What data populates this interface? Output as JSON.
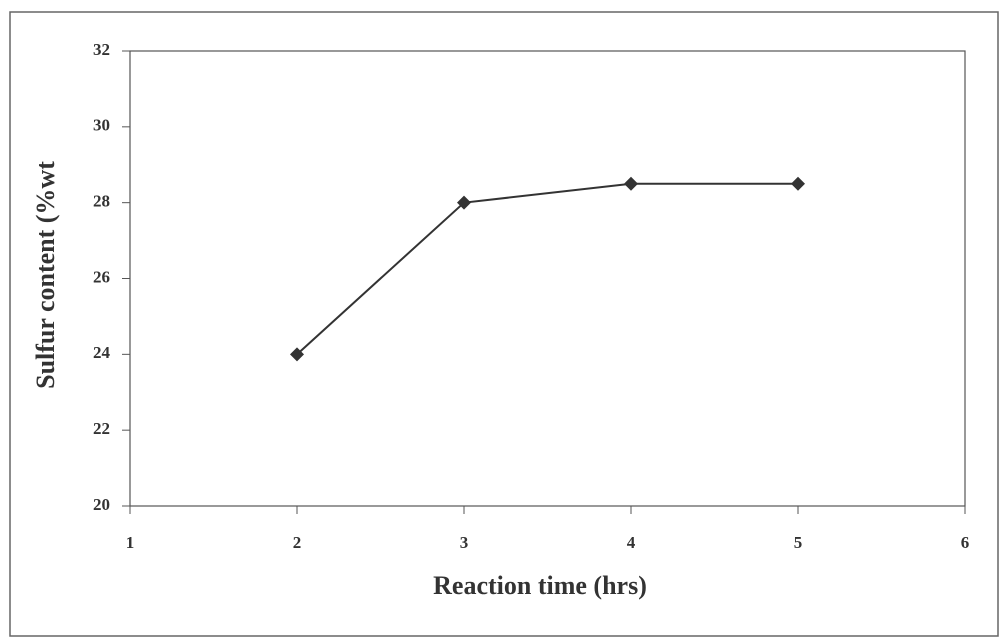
{
  "chart_data": {
    "type": "line",
    "x_label": "Reaction time (hrs)",
    "y_label": "Sulfur content (%wt",
    "x": [
      2,
      3,
      4,
      5
    ],
    "values": [
      24,
      28,
      28.5,
      28.5
    ],
    "color": "#333333",
    "xlim": [
      1,
      6
    ],
    "xticks": [
      1,
      2,
      3,
      4,
      5,
      6
    ],
    "ylim": [
      20,
      32
    ],
    "yticks": [
      20,
      22,
      24,
      26,
      28,
      30,
      32
    ],
    "grid": false
  }
}
